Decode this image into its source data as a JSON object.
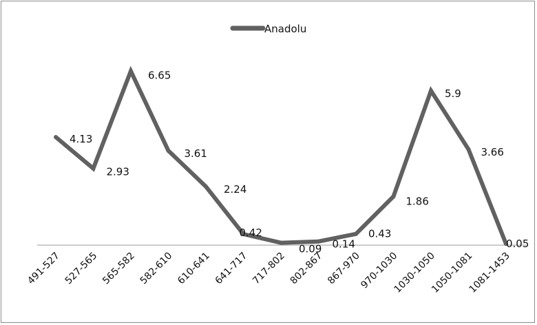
{
  "chart_data": {
    "type": "line",
    "categories": [
      "491-527",
      "527-565",
      "565-582",
      "582-610",
      "610-641",
      "641-717",
      "717-802",
      "802-867",
      "867-970",
      "970-1030",
      "1030-1050",
      "1050-1081",
      "1081-1453"
    ],
    "series": [
      {
        "name": "Anadolu",
        "values": [
          4.13,
          2.93,
          6.65,
          3.61,
          2.24,
          0.42,
          0.09,
          0.14,
          0.43,
          1.86,
          5.9,
          3.66,
          0.05
        ]
      }
    ],
    "data_labels": [
      "4.13",
      "2.93",
      "6.65",
      "3.61",
      "2.24",
      "0.42",
      "0.09",
      "0.14",
      "0.43",
      "1.86",
      "5.9",
      "3.66",
      "0.05"
    ],
    "legend_position": "top",
    "line_color": "#616161",
    "axis_color": "#9a9a9a",
    "grid": false
  }
}
